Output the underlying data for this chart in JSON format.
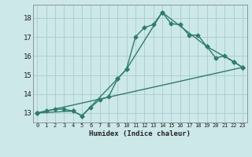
{
  "xlabel": "Humidex (Indice chaleur)",
  "bg_color": "#cce8e8",
  "line_color": "#2e7d6e",
  "grid_color": "#aacccc",
  "xlim": [
    -0.5,
    23.5
  ],
  "ylim": [
    12.5,
    18.7
  ],
  "yticks": [
    13,
    14,
    15,
    16,
    17,
    18
  ],
  "xticks": [
    0,
    1,
    2,
    3,
    4,
    5,
    6,
    7,
    8,
    9,
    10,
    11,
    12,
    13,
    14,
    15,
    16,
    17,
    18,
    19,
    20,
    21,
    22,
    23
  ],
  "line1_x": [
    0,
    1,
    2,
    3,
    4,
    5,
    6,
    7,
    8,
    9,
    10,
    11,
    12,
    13,
    14,
    15,
    16,
    17,
    18,
    19,
    20,
    21,
    22,
    23
  ],
  "line1_y": [
    13.0,
    13.1,
    13.2,
    13.2,
    13.1,
    12.85,
    13.3,
    13.7,
    13.85,
    14.8,
    15.3,
    17.0,
    17.5,
    17.65,
    18.3,
    17.7,
    17.65,
    17.1,
    17.1,
    16.5,
    15.9,
    16.0,
    15.7,
    15.4
  ],
  "line2_x": [
    0,
    4,
    5,
    9,
    10,
    14,
    19,
    22,
    23
  ],
  "line2_y": [
    13.0,
    13.1,
    12.85,
    14.8,
    15.3,
    18.3,
    16.5,
    15.7,
    15.4
  ],
  "line3_x": [
    0,
    23
  ],
  "line3_y": [
    13.0,
    15.4
  ],
  "markersize": 2.5,
  "linewidth": 1.0
}
